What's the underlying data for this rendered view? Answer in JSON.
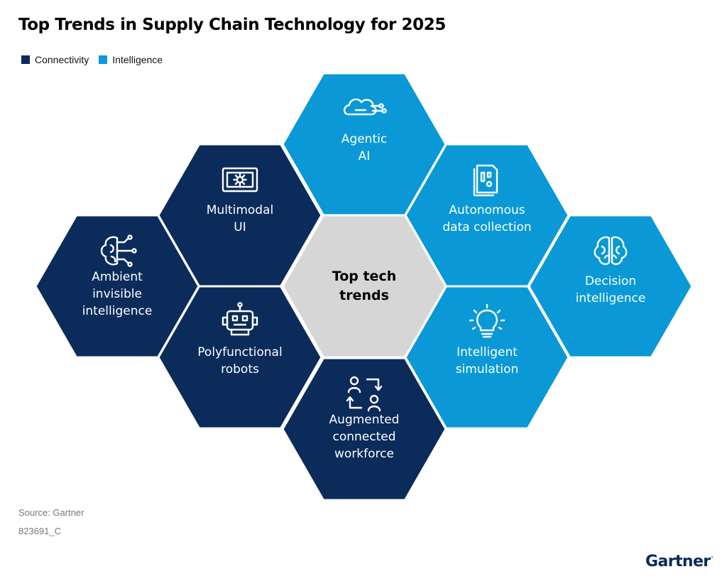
{
  "title": "Top Trends in Supply Chain Technology for 2025",
  "legend": [
    {
      "label": "Connectivity",
      "color": "#0b2b5b"
    },
    {
      "label": "Intelligence",
      "color": "#0a99d6"
    }
  ],
  "colors": {
    "connectivity": "#0b2b5b",
    "intelligence": "#0a99d6",
    "center": "#d6d6d6"
  },
  "center": {
    "lines": [
      "Top tech",
      "trends"
    ]
  },
  "trends": [
    {
      "id": "agentic-ai",
      "lines": [
        "Agentic",
        "AI"
      ],
      "category": "intelligence",
      "icon": "circuit-cloud-icon"
    },
    {
      "id": "multimodal-ui",
      "lines": [
        "Multimodal",
        "UI"
      ],
      "category": "connectivity",
      "icon": "screen-gear-icon"
    },
    {
      "id": "autonomous-data-collection",
      "lines": [
        "Autonomous",
        "data collection"
      ],
      "category": "intelligence",
      "icon": "document-chip-icon"
    },
    {
      "id": "ambient-invisible-intelligence",
      "lines": [
        "Ambient",
        "invisible",
        "intelligence"
      ],
      "category": "connectivity",
      "icon": "brain-circuit-icon"
    },
    {
      "id": "decision-intelligence",
      "lines": [
        "Decision",
        "intelligence"
      ],
      "category": "intelligence",
      "icon": "brain-icon"
    },
    {
      "id": "polyfunctional-robots",
      "lines": [
        "Polyfunctional",
        "robots"
      ],
      "category": "connectivity",
      "icon": "robot-icon"
    },
    {
      "id": "intelligent-simulation",
      "lines": [
        "Intelligent",
        "simulation"
      ],
      "category": "intelligence",
      "icon": "lightbulb-icon"
    },
    {
      "id": "augmented-connected-workforce",
      "lines": [
        "Augmented",
        "connected",
        "workforce"
      ],
      "category": "connectivity",
      "icon": "people-swap-icon"
    }
  ],
  "source": "Source: Gartner",
  "code": "823691_C",
  "logo": "Gartner"
}
